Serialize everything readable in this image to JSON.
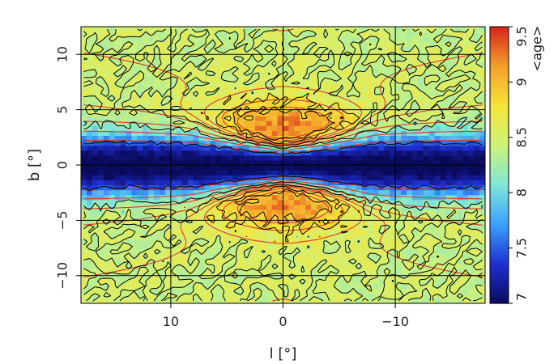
{
  "chart_data": {
    "type": "heatmap",
    "title": "",
    "xlabel": "l [°]",
    "ylabel": "b [°]",
    "colorbar_label": "<age>",
    "xlim": [
      18,
      -18
    ],
    "ylim": [
      -12.5,
      12.5
    ],
    "x_ticks": [
      10,
      0,
      -10
    ],
    "x_tick_labels": [
      "10",
      "0",
      "−10"
    ],
    "y_ticks": [
      -10,
      -5,
      0,
      5,
      10
    ],
    "y_tick_labels": [
      "−10",
      "−5",
      "0",
      "5",
      "10"
    ],
    "colorbar_range": [
      7,
      9.5
    ],
    "colorbar_ticks": [
      7,
      7.5,
      8,
      8.5,
      9,
      9.5
    ],
    "colorbar_tick_labels": [
      "7",
      "7.5",
      "8",
      "8.5",
      "9",
      "9.5"
    ],
    "grid": true,
    "colormap": [
      "#0a0a5a",
      "#1e2fd0",
      "#3aa0ff",
      "#7fe6d8",
      "#cdf27a",
      "#f6e43a",
      "#f4a02a",
      "#d8261c"
    ],
    "contour_colors": {
      "black": "#000000",
      "red": "#d93a2a"
    },
    "structure": {
      "disk_band_halfwidth_deg": 2.2,
      "disk_band_value": 7.0,
      "bulge_peak_value": 9.1,
      "bulge_peak_b": [
        3.5,
        -3.5
      ],
      "background_value": 8.45
    }
  }
}
